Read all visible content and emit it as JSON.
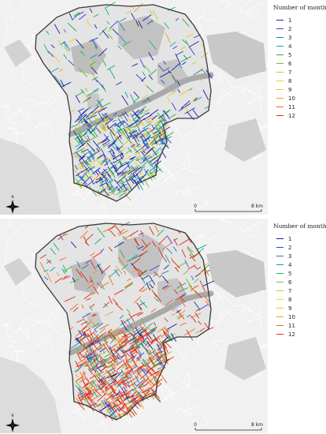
{
  "figure": {
    "panels": [
      {
        "id": "top",
        "legend": {
          "title": "Number of months",
          "items": [
            {
              "label": "1",
              "color": "#1a1aa8"
            },
            {
              "label": "2",
              "color": "#2f3fd6"
            },
            {
              "label": "3",
              "color": "#1f78b4"
            },
            {
              "label": "4",
              "color": "#0fa09a"
            },
            {
              "label": "5",
              "color": "#19b34a"
            },
            {
              "label": "6",
              "color": "#62c232"
            },
            {
              "label": "7",
              "color": "#b6d51f"
            },
            {
              "label": "8",
              "color": "#e1d81b"
            },
            {
              "label": "9",
              "color": "#f0c419"
            },
            {
              "label": "10",
              "color": "#f39a1b"
            },
            {
              "label": "11",
              "color": "#f16a16"
            },
            {
              "label": "12",
              "color": "#e12a16"
            }
          ]
        },
        "scale": {
          "start": "0",
          "end": "8 km"
        },
        "north_label": "N",
        "dominant_months": [
          1,
          1,
          1,
          2,
          2,
          3,
          4,
          5,
          5,
          6,
          7,
          8,
          9,
          10,
          1,
          2,
          4
        ]
      },
      {
        "id": "bottom",
        "legend": {
          "title": "Number of months",
          "items": [
            {
              "label": "1",
              "color": "#1a1aa8"
            },
            {
              "label": "2",
              "color": "#2f3fd6"
            },
            {
              "label": "3",
              "color": "#1f78b4"
            },
            {
              "label": "4",
              "color": "#0fa09a"
            },
            {
              "label": "5",
              "color": "#19b34a"
            },
            {
              "label": "6",
              "color": "#62c232"
            },
            {
              "label": "7",
              "color": "#b6d51f"
            },
            {
              "label": "8",
              "color": "#e1d81b"
            },
            {
              "label": "9",
              "color": "#f0c419"
            },
            {
              "label": "10",
              "color": "#f39a1b"
            },
            {
              "label": "11",
              "color": "#f16a16"
            },
            {
              "label": "12",
              "color": "#e12a16"
            }
          ]
        },
        "scale": {
          "start": "0",
          "end": "8 km"
        },
        "north_label": "N",
        "dominant_months": [
          12,
          12,
          12,
          11,
          11,
          12,
          1,
          2,
          3,
          5,
          6,
          12,
          10,
          12,
          4,
          12,
          11
        ]
      }
    ]
  }
}
